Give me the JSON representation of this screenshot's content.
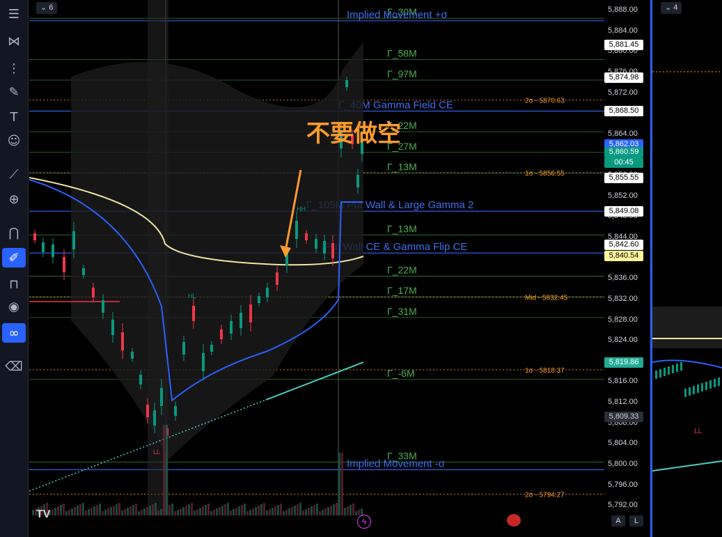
{
  "main_pane": {
    "interval_badge": "6",
    "annotation": "不要做空",
    "y_ticks": [
      "5,888.00",
      "5,884.00",
      "5,880.00",
      "5,876.00",
      "5,872.00",
      "5,868.00",
      "5,864.00",
      "5,862.03",
      "5,860.00",
      "5,856.00",
      "5,852.00",
      "5,848.00",
      "5,844.00",
      "5,840.00",
      "5,836.00",
      "5,832.00",
      "5,828.00",
      "5,824.00",
      "5,820.00",
      "5,816.00",
      "5,812.00",
      "5,808.00",
      "5,804.00",
      "5,800.00",
      "5,796.00",
      "5,792.00"
    ],
    "y_axis_range": [
      5790,
      5890
    ],
    "price_tags": [
      {
        "value": "5,881.45",
        "price": 5881.45,
        "bg": "#ffffff",
        "fg": "#000000"
      },
      {
        "value": "5,874.98",
        "price": 5874.98,
        "bg": "#ffffff",
        "fg": "#000000"
      },
      {
        "value": "5,868.50",
        "price": 5868.5,
        "bg": "#ffffff",
        "fg": "#000000"
      },
      {
        "value": "5,862.03",
        "price": 5862.03,
        "bg": "#2962ff",
        "fg": "#ffffff"
      },
      {
        "value": "5,860.59",
        "price": 5860.59,
        "bg": "#089981",
        "fg": "#ffffff"
      },
      {
        "value": "00:45",
        "price": 5858.6,
        "bg": "#089981",
        "fg": "#ffffff"
      },
      {
        "value": "5,855.55",
        "price": 5855.55,
        "bg": "#ffffff",
        "fg": "#000000"
      },
      {
        "value": "5,849.08",
        "price": 5849.08,
        "bg": "#ffffff",
        "fg": "#000000"
      },
      {
        "value": "5,842.60",
        "price": 5842.6,
        "bg": "#ffffff",
        "fg": "#000000"
      },
      {
        "value": "5,840.54",
        "price": 5840.54,
        "bg": "#fff59d",
        "fg": "#000000"
      },
      {
        "value": "5,819.86",
        "price": 5819.86,
        "bg": "#22ab94",
        "fg": "#ffffff"
      },
      {
        "value": "5,809.33",
        "price": 5809.33,
        "bg": "#2a2e39",
        "fg": "#d1d4dc"
      }
    ],
    "gamma_levels": [
      {
        "label": "Γ_30M",
        "price": 5886.5
      },
      {
        "label": "Γ_58M",
        "price": 5878.5
      },
      {
        "label": "Γ_97M",
        "price": 5874.5
      },
      {
        "label": "Γ_22M",
        "price": 5864.5
      },
      {
        "label": "Γ_27M",
        "price": 5860.5
      },
      {
        "label": "Γ_13M",
        "price": 5856.5
      },
      {
        "label": "Γ_13M",
        "price": 5844.5
      },
      {
        "label": "Γ_22M",
        "price": 5836.5
      },
      {
        "label": "Γ_17M",
        "price": 5832.5
      },
      {
        "label": "Γ_31M",
        "price": 5828.5
      },
      {
        "label": "Γ_-6M",
        "price": 5816.5
      },
      {
        "label": "Γ_33M",
        "price": 5800.5
      }
    ],
    "blue_levels": [
      {
        "label": "Implied Movement +σ",
        "price": 5886.0
      },
      {
        "label": "Γ_40M  Gamma Field CE",
        "price": 5868.5
      },
      {
        "label": "Γ_105M  Put Wall & Large Gamma 2",
        "price": 5849.1
      },
      {
        "label": "Put Wall CE & Gamma Flip CE",
        "price": 5841.0
      },
      {
        "label": "Implied Movement -σ",
        "price": 5799.0
      }
    ],
    "sigma_labels": [
      {
        "label": "2σ - 5870.63",
        "price": 5870.63
      },
      {
        "label": "1σ - 5856.55",
        "price": 5856.55
      },
      {
        "label": "Mid - 5832.45",
        "price": 5832.45
      },
      {
        "label": "1σ - 5818.37",
        "price": 5818.37
      },
      {
        "label": "2σ - 5794.27",
        "price": 5794.27
      }
    ],
    "pattern_labels": [
      "HH",
      "HL",
      "LL"
    ],
    "logo": "TV"
  },
  "side_pane": {
    "interval_badge": "4",
    "pattern_label": "LL"
  },
  "bottom_buttons": [
    "A",
    "L"
  ],
  "toolbar_icons": [
    "menu-icon",
    "crosshair-icon",
    "pattern-icon",
    "trend-line-icon",
    "brush-icon",
    "text-icon",
    "emoji-icon",
    "ruler-icon",
    "zoom-in-icon",
    "magnet-icon",
    "lock-drawing-icon",
    "unlock-icon",
    "eye-icon",
    "link-icon",
    "trash-icon"
  ],
  "colors": {
    "gamma_green": "#4caf50",
    "blue_level": "#2f5ee8",
    "orange": "#ff9b2b",
    "yellow_ma": "#f2e6a3",
    "blue_ma": "#2962ff",
    "cyan_trend": "#4dd0c1"
  }
}
